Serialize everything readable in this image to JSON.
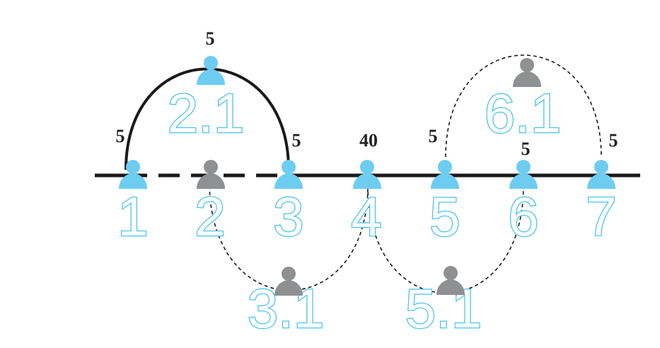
{
  "colors": {
    "active": "#6dcdf0",
    "label_outline": "#4dc3ec",
    "inactive": "#8f9092",
    "line": "#1a1a1a"
  },
  "nodes": [
    {
      "id": "1",
      "label": "1",
      "state": "active"
    },
    {
      "id": "2",
      "label": "2",
      "state": "inactive"
    },
    {
      "id": "3",
      "label": "3",
      "state": "active"
    },
    {
      "id": "4",
      "label": "4",
      "state": "active"
    },
    {
      "id": "5",
      "label": "5",
      "state": "active"
    },
    {
      "id": "6",
      "label": "6",
      "state": "active"
    },
    {
      "id": "7",
      "label": "7",
      "state": "active"
    },
    {
      "id": "2.1",
      "label": "2.1",
      "state": "active"
    },
    {
      "id": "3.1",
      "label": "3.1",
      "state": "inactive"
    },
    {
      "id": "5.1",
      "label": "5.1",
      "state": "inactive"
    },
    {
      "id": "6.1",
      "label": "6.1",
      "state": "inactive"
    }
  ],
  "weights": [
    {
      "id": "w-arc-left",
      "text": "5"
    },
    {
      "id": "w-top-21",
      "text": "5"
    },
    {
      "id": "w-arc-right",
      "text": "5"
    },
    {
      "id": "w-node-4",
      "text": "40"
    },
    {
      "id": "w-arc-61-left",
      "text": "5"
    },
    {
      "id": "w-node-6",
      "text": "5"
    },
    {
      "id": "w-arc-61-right",
      "text": "5"
    }
  ]
}
